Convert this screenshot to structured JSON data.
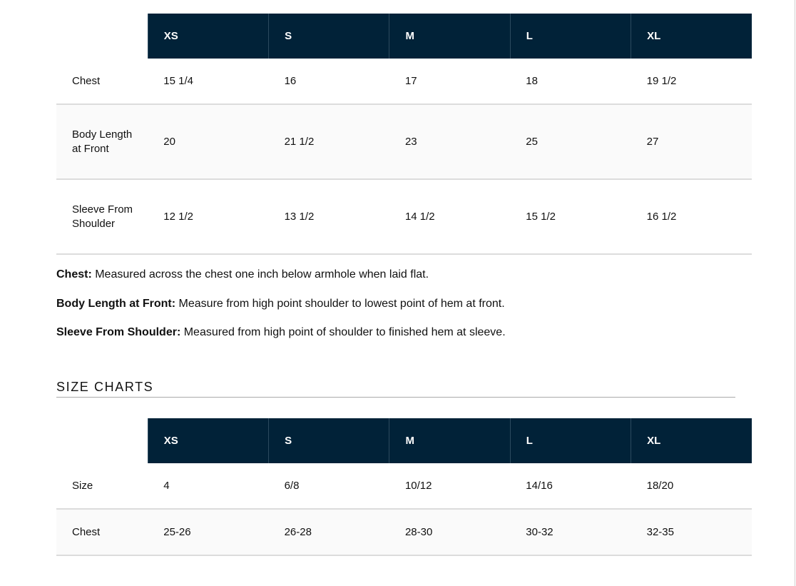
{
  "measurements_table": {
    "headers": [
      "XS",
      "S",
      "M",
      "L",
      "XL"
    ],
    "rows": [
      {
        "label": "Chest",
        "values": [
          "15 1/4",
          "16",
          "17",
          "18",
          "19 1/2"
        ]
      },
      {
        "label": "Body Length at Front",
        "values": [
          "20",
          "21 1/2",
          "23",
          "25",
          "27"
        ]
      },
      {
        "label": "Sleeve From Shoulder",
        "values": [
          "12 1/2",
          "13 1/2",
          "14 1/2",
          "15 1/2",
          "16 1/2"
        ]
      }
    ]
  },
  "notes": [
    {
      "term": "Chest:",
      "text": " Measured across the chest one inch below armhole when laid flat."
    },
    {
      "term": "Body Length at Front:",
      "text": " Measure from high point shoulder to lowest point of hem at front."
    },
    {
      "term": "Sleeve From Shoulder:",
      "text": " Measured from high point of shoulder to finished hem at sleeve."
    }
  ],
  "size_charts": {
    "title": "SIZE CHARTS",
    "headers": [
      "XS",
      "S",
      "M",
      "L",
      "XL"
    ],
    "rows": [
      {
        "label": "Size",
        "values": [
          "4",
          "6/8",
          "10/12",
          "14/16",
          "18/20"
        ]
      },
      {
        "label": "Chest",
        "values": [
          "25-26",
          "26-28",
          "28-30",
          "30-32",
          "32-35"
        ]
      }
    ]
  },
  "colors": {
    "header_bg": "#012238",
    "header_text": "#ffffff",
    "row_border": "#dcdcdc"
  }
}
